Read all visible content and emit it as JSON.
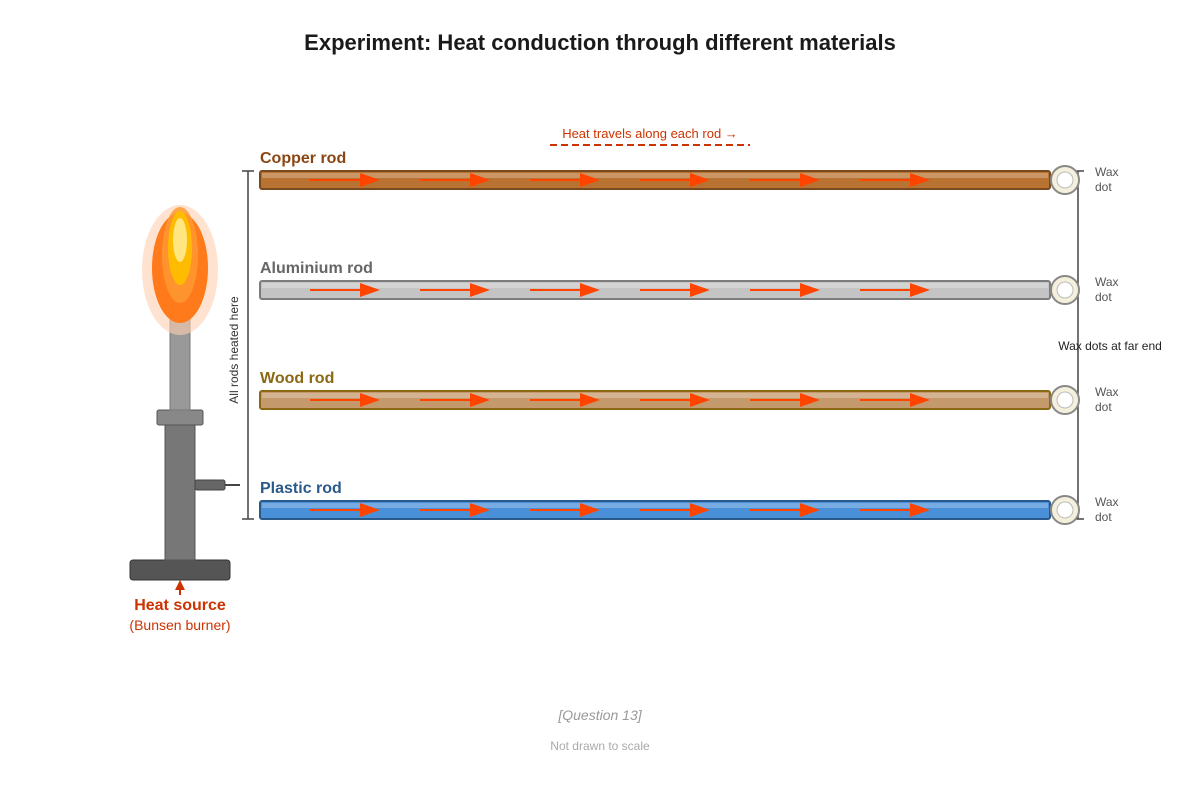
{
  "title": "Experiment: Heat conduction through different materials",
  "heat_travel_label": "Heat travels along each rod →",
  "heated_here_label": "All rods heated here",
  "wax_far_end_label": "Wax dots at far end",
  "heat_source": {
    "label": "Heat source",
    "sublabel": "(Bunsen burner)"
  },
  "rods": [
    {
      "label": "Copper rod",
      "label_color": "#8b4513",
      "fill": "#b87333",
      "stroke": "#7a4a1e",
      "wax_label": [
        "Wax",
        "dot"
      ]
    },
    {
      "label": "Aluminium rod",
      "label_color": "#666666",
      "fill": "#c4c4c4",
      "stroke": "#7d7d7d",
      "wax_label": [
        "Wax",
        "dot"
      ]
    },
    {
      "label": "Wood rod",
      "label_color": "#8b6914",
      "fill": "#c49a6c",
      "stroke": "#8b6914",
      "wax_label": [
        "Wax",
        "dot"
      ]
    },
    {
      "label": "Plastic rod",
      "label_color": "#2a5a8a",
      "fill": "#4a90d9",
      "stroke": "#2a5a8a",
      "wax_label": [
        "Wax",
        "dot"
      ]
    }
  ],
  "arrow_color": "#ff4400",
  "question_label": "[Question 13]",
  "scale_note": "Not drawn to scale"
}
